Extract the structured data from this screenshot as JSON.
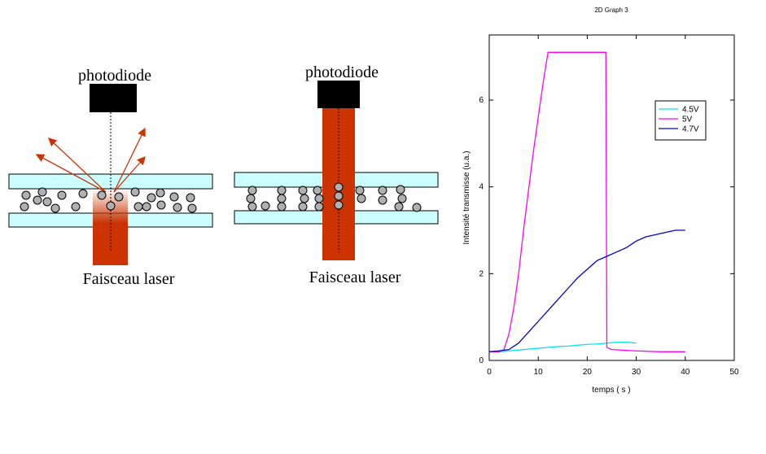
{
  "diagrams": [
    {
      "top_label": "photodiode",
      "bottom_label": "Faisceau laser"
    },
    {
      "top_label": "photodiode",
      "bottom_label": "Faisceau laser"
    }
  ],
  "chart_data": {
    "type": "line",
    "title": "2D Graph 3",
    "x_label": "temps ( s )",
    "y_label": "Intensité transmisse (u.a.)",
    "xlim": [
      0,
      50
    ],
    "xticks": [
      0,
      10,
      20,
      30,
      40,
      50
    ],
    "ylim": [
      0,
      7.5
    ],
    "yticks": [
      0,
      2,
      4,
      6
    ],
    "legend": "upper right",
    "series": [
      {
        "name": "4.5V",
        "color": "#00e5ee",
        "x": [
          0,
          2,
          4,
          6,
          8,
          10,
          12,
          14,
          16,
          18,
          20,
          22,
          24,
          26,
          28,
          30
        ],
        "values": [
          0.2,
          0.2,
          0.22,
          0.24,
          0.26,
          0.28,
          0.3,
          0.32,
          0.33,
          0.35,
          0.37,
          0.38,
          0.4,
          0.42,
          0.42,
          0.4
        ]
      },
      {
        "name": "5V",
        "color": "#ff00ff",
        "x": [
          0,
          2,
          3,
          4,
          5,
          6,
          7,
          8,
          9,
          10,
          11,
          12,
          15,
          20,
          23.8,
          24,
          25,
          30,
          35,
          40
        ],
        "values": [
          0.2,
          0.2,
          0.25,
          0.6,
          1.2,
          2,
          3,
          3.9,
          4.8,
          5.6,
          6.4,
          7.1,
          7.1,
          7.1,
          7.1,
          0.3,
          0.25,
          0.22,
          0.2,
          0.2
        ]
      },
      {
        "name": "4.7V",
        "color": "#0000cd",
        "x": [
          0,
          2,
          4,
          6,
          8,
          10,
          12,
          14,
          16,
          18,
          20,
          22,
          24,
          26,
          28,
          30,
          32,
          34,
          36,
          38,
          40
        ],
        "values": [
          0.2,
          0.22,
          0.25,
          0.4,
          0.65,
          0.9,
          1.15,
          1.4,
          1.65,
          1.9,
          2.1,
          2.3,
          2.4,
          2.5,
          2.6,
          2.75,
          2.85,
          2.9,
          2.95,
          3.0,
          3.0
        ]
      }
    ]
  }
}
